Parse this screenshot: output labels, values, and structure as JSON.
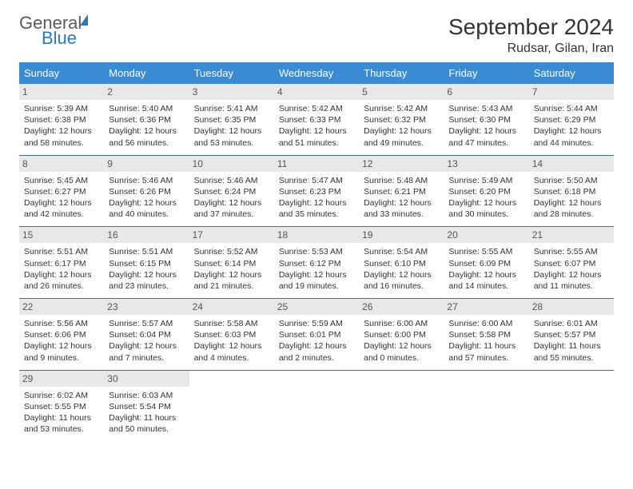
{
  "brand": {
    "top": "General",
    "bottom": "Blue"
  },
  "title": {
    "month": "September 2024",
    "location": "Rudsar, Gilan, Iran"
  },
  "colors": {
    "header_bg": "#3b8bd4",
    "header_text": "#ffffff",
    "daybar_bg": "#e8e8e8",
    "rule": "#3b6fa0",
    "brand_blue": "#2b78c2",
    "brand_gray": "#5a5a5a"
  },
  "typography": {
    "month_fontsize": 28,
    "location_fontsize": 16,
    "dow_fontsize": 13,
    "daynum_fontsize": 12,
    "info_fontsize": 10.5
  },
  "dow": [
    "Sunday",
    "Monday",
    "Tuesday",
    "Wednesday",
    "Thursday",
    "Friday",
    "Saturday"
  ],
  "days": [
    {
      "n": "1",
      "sr": "5:39 AM",
      "ss": "6:38 PM",
      "dl": "12 hours and 58 minutes."
    },
    {
      "n": "2",
      "sr": "5:40 AM",
      "ss": "6:36 PM",
      "dl": "12 hours and 56 minutes."
    },
    {
      "n": "3",
      "sr": "5:41 AM",
      "ss": "6:35 PM",
      "dl": "12 hours and 53 minutes."
    },
    {
      "n": "4",
      "sr": "5:42 AM",
      "ss": "6:33 PM",
      "dl": "12 hours and 51 minutes."
    },
    {
      "n": "5",
      "sr": "5:42 AM",
      "ss": "6:32 PM",
      "dl": "12 hours and 49 minutes."
    },
    {
      "n": "6",
      "sr": "5:43 AM",
      "ss": "6:30 PM",
      "dl": "12 hours and 47 minutes."
    },
    {
      "n": "7",
      "sr": "5:44 AM",
      "ss": "6:29 PM",
      "dl": "12 hours and 44 minutes."
    },
    {
      "n": "8",
      "sr": "5:45 AM",
      "ss": "6:27 PM",
      "dl": "12 hours and 42 minutes."
    },
    {
      "n": "9",
      "sr": "5:46 AM",
      "ss": "6:26 PM",
      "dl": "12 hours and 40 minutes."
    },
    {
      "n": "10",
      "sr": "5:46 AM",
      "ss": "6:24 PM",
      "dl": "12 hours and 37 minutes."
    },
    {
      "n": "11",
      "sr": "5:47 AM",
      "ss": "6:23 PM",
      "dl": "12 hours and 35 minutes."
    },
    {
      "n": "12",
      "sr": "5:48 AM",
      "ss": "6:21 PM",
      "dl": "12 hours and 33 minutes."
    },
    {
      "n": "13",
      "sr": "5:49 AM",
      "ss": "6:20 PM",
      "dl": "12 hours and 30 minutes."
    },
    {
      "n": "14",
      "sr": "5:50 AM",
      "ss": "6:18 PM",
      "dl": "12 hours and 28 minutes."
    },
    {
      "n": "15",
      "sr": "5:51 AM",
      "ss": "6:17 PM",
      "dl": "12 hours and 26 minutes."
    },
    {
      "n": "16",
      "sr": "5:51 AM",
      "ss": "6:15 PM",
      "dl": "12 hours and 23 minutes."
    },
    {
      "n": "17",
      "sr": "5:52 AM",
      "ss": "6:14 PM",
      "dl": "12 hours and 21 minutes."
    },
    {
      "n": "18",
      "sr": "5:53 AM",
      "ss": "6:12 PM",
      "dl": "12 hours and 19 minutes."
    },
    {
      "n": "19",
      "sr": "5:54 AM",
      "ss": "6:10 PM",
      "dl": "12 hours and 16 minutes."
    },
    {
      "n": "20",
      "sr": "5:55 AM",
      "ss": "6:09 PM",
      "dl": "12 hours and 14 minutes."
    },
    {
      "n": "21",
      "sr": "5:55 AM",
      "ss": "6:07 PM",
      "dl": "12 hours and 11 minutes."
    },
    {
      "n": "22",
      "sr": "5:56 AM",
      "ss": "6:06 PM",
      "dl": "12 hours and 9 minutes."
    },
    {
      "n": "23",
      "sr": "5:57 AM",
      "ss": "6:04 PM",
      "dl": "12 hours and 7 minutes."
    },
    {
      "n": "24",
      "sr": "5:58 AM",
      "ss": "6:03 PM",
      "dl": "12 hours and 4 minutes."
    },
    {
      "n": "25",
      "sr": "5:59 AM",
      "ss": "6:01 PM",
      "dl": "12 hours and 2 minutes."
    },
    {
      "n": "26",
      "sr": "6:00 AM",
      "ss": "6:00 PM",
      "dl": "12 hours and 0 minutes."
    },
    {
      "n": "27",
      "sr": "6:00 AM",
      "ss": "5:58 PM",
      "dl": "11 hours and 57 minutes."
    },
    {
      "n": "28",
      "sr": "6:01 AM",
      "ss": "5:57 PM",
      "dl": "11 hours and 55 minutes."
    },
    {
      "n": "29",
      "sr": "6:02 AM",
      "ss": "5:55 PM",
      "dl": "11 hours and 53 minutes."
    },
    {
      "n": "30",
      "sr": "6:03 AM",
      "ss": "5:54 PM",
      "dl": "11 hours and 50 minutes."
    }
  ],
  "labels": {
    "sunrise": "Sunrise: ",
    "sunset": "Sunset: ",
    "daylight": "Daylight: "
  }
}
